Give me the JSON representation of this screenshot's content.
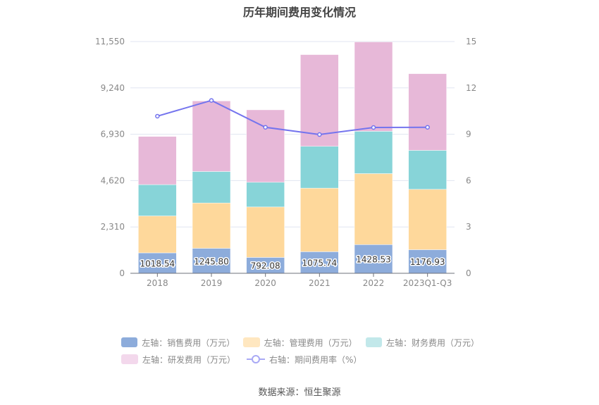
{
  "chart_data": {
    "type": "bar",
    "title": "历年期间费用变化情况",
    "categories": [
      "2018",
      "2019",
      "2020",
      "2021",
      "2022",
      "2023Q1-Q3"
    ],
    "left_axis": {
      "min": 0,
      "max": 11550,
      "ticks": [
        "0",
        "2,310",
        "4,620",
        "6,930",
        "9,240",
        "11,550"
      ]
    },
    "right_axis": {
      "min": 0,
      "max": 15,
      "ticks": [
        "0",
        "3",
        "6",
        "9",
        "12",
        "15"
      ]
    },
    "grid": true,
    "legend_position": "bottom",
    "series": [
      {
        "name": "左轴：销售费用（万元）",
        "type": "bar",
        "stack": "total",
        "axis": "left",
        "color": "#8dacdb",
        "values": [
          1018.54,
          1245.8,
          792.08,
          1075.74,
          1428.53,
          1176.93
        ],
        "labels": [
          "1018.54",
          "1245.80",
          "792.08",
          "1075.74",
          "1428.53",
          "1176.93"
        ]
      },
      {
        "name": "左轴：管理费用（万元）",
        "type": "bar",
        "stack": "total",
        "axis": "left",
        "color": "#fed89b",
        "values": [
          1840,
          2259,
          2513,
          3168,
          3540,
          3007
        ]
      },
      {
        "name": "左轴：财务费用（万元）",
        "type": "bar",
        "stack": "total",
        "axis": "left",
        "color": "#87d4d8",
        "values": [
          1562,
          1569,
          1231,
          2085,
          2110,
          1944
        ]
      },
      {
        "name": "左轴：研发费用（万元）",
        "type": "bar",
        "stack": "total",
        "axis": "left",
        "color": "#e7b8d8",
        "values": [
          2401,
          3516,
          3611,
          4571,
          4454,
          3822
        ]
      },
      {
        "name": "右轴：期间费用率（%）",
        "type": "line",
        "axis": "right",
        "color": "#7474ee",
        "values": [
          10.17,
          11.19,
          9.45,
          8.98,
          9.44,
          9.45
        ]
      }
    ],
    "legend_swatch_colors": [
      "#8dacdb",
      "#ffe7c0",
      "#c2e8ea",
      "#f3d8ec",
      "#a9a9f5"
    ]
  },
  "source": "数据来源：恒生聚源"
}
